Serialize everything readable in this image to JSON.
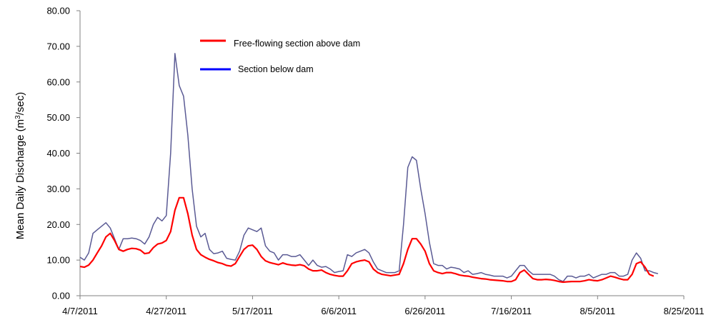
{
  "chart_data": {
    "type": "line",
    "title": "",
    "xlabel": "",
    "ylabel": "Mean Daily Discharge (m³/sec)",
    "ylabel_parts": [
      "Mean Daily Discharge (m",
      "3",
      "/sec)"
    ],
    "x_start": "4/7/2011",
    "x_end": "8/25/2011",
    "ylim": [
      0,
      80
    ],
    "xticks": [
      "4/7/2011",
      "4/27/2011",
      "5/17/2011",
      "6/6/2011",
      "6/26/2011",
      "7/16/2011",
      "8/5/2011",
      "8/25/2011"
    ],
    "yticks": [
      "0.00",
      "10.00",
      "20.00",
      "30.00",
      "40.00",
      "50.00",
      "60.00",
      "70.00",
      "80.00"
    ],
    "grid": false,
    "legend_position": "top-left-inside",
    "series": [
      {
        "name": "Free-flowing section above dam",
        "color": "#ff0000",
        "points": [
          [
            "4/7/2011",
            8.2
          ],
          [
            "4/8/2011",
            8.0
          ],
          [
            "4/9/2011",
            8.6
          ],
          [
            "4/10/2011",
            10.0
          ],
          [
            "4/11/2011",
            12.0
          ],
          [
            "4/12/2011",
            14.0
          ],
          [
            "4/13/2011",
            16.5
          ],
          [
            "4/14/2011",
            17.5
          ],
          [
            "4/15/2011",
            15.5
          ],
          [
            "4/16/2011",
            13.0
          ],
          [
            "4/17/2011",
            12.5
          ],
          [
            "4/18/2011",
            13.0
          ],
          [
            "4/19/2011",
            13.3
          ],
          [
            "4/20/2011",
            13.2
          ],
          [
            "4/21/2011",
            12.8
          ],
          [
            "4/22/2011",
            11.8
          ],
          [
            "4/23/2011",
            12.0
          ],
          [
            "4/24/2011",
            13.5
          ],
          [
            "4/25/2011",
            14.5
          ],
          [
            "4/26/2011",
            14.8
          ],
          [
            "4/27/2011",
            15.5
          ],
          [
            "4/28/2011",
            18.0
          ],
          [
            "4/29/2011",
            24.0
          ],
          [
            "4/30/2011",
            27.5
          ],
          [
            "5/1/2011",
            27.5
          ],
          [
            "5/2/2011",
            23.0
          ],
          [
            "5/3/2011",
            17.0
          ],
          [
            "5/4/2011",
            13.0
          ],
          [
            "5/5/2011",
            11.5
          ],
          [
            "5/6/2011",
            10.8
          ],
          [
            "5/7/2011",
            10.2
          ],
          [
            "5/8/2011",
            9.8
          ],
          [
            "5/9/2011",
            9.3
          ],
          [
            "5/10/2011",
            9.0
          ],
          [
            "5/11/2011",
            8.5
          ],
          [
            "5/12/2011",
            8.3
          ],
          [
            "5/13/2011",
            9.0
          ],
          [
            "5/14/2011",
            11.0
          ],
          [
            "5/15/2011",
            13.0
          ],
          [
            "5/16/2011",
            14.0
          ],
          [
            "5/17/2011",
            14.2
          ],
          [
            "5/18/2011",
            13.0
          ],
          [
            "5/19/2011",
            11.0
          ],
          [
            "5/20/2011",
            9.8
          ],
          [
            "5/21/2011",
            9.3
          ],
          [
            "5/22/2011",
            9.0
          ],
          [
            "5/23/2011",
            8.7
          ],
          [
            "5/24/2011",
            9.2
          ],
          [
            "5/25/2011",
            8.8
          ],
          [
            "5/26/2011",
            8.6
          ],
          [
            "5/27/2011",
            8.5
          ],
          [
            "5/28/2011",
            8.7
          ],
          [
            "5/29/2011",
            8.4
          ],
          [
            "5/30/2011",
            7.5
          ],
          [
            "5/31/2011",
            7.0
          ],
          [
            "6/1/2011",
            7.0
          ],
          [
            "6/2/2011",
            7.2
          ],
          [
            "6/3/2011",
            6.5
          ],
          [
            "6/4/2011",
            6.0
          ],
          [
            "6/5/2011",
            5.7
          ],
          [
            "6/6/2011",
            5.5
          ],
          [
            "6/7/2011",
            5.5
          ],
          [
            "6/8/2011",
            7.0
          ],
          [
            "6/9/2011",
            9.0
          ],
          [
            "6/10/2011",
            9.5
          ],
          [
            "6/11/2011",
            9.8
          ],
          [
            "6/12/2011",
            10.0
          ],
          [
            "6/13/2011",
            9.5
          ],
          [
            "6/14/2011",
            7.5
          ],
          [
            "6/15/2011",
            6.5
          ],
          [
            "6/16/2011",
            6.0
          ],
          [
            "6/17/2011",
            5.8
          ],
          [
            "6/18/2011",
            5.6
          ],
          [
            "6/19/2011",
            5.8
          ],
          [
            "6/20/2011",
            6.0
          ],
          [
            "6/21/2011",
            9.0
          ],
          [
            "6/22/2011",
            13.0
          ],
          [
            "6/23/2011",
            16.0
          ],
          [
            "6/24/2011",
            16.0
          ],
          [
            "6/25/2011",
            14.5
          ],
          [
            "6/26/2011",
            12.5
          ],
          [
            "6/27/2011",
            9.0
          ],
          [
            "6/28/2011",
            7.0
          ],
          [
            "6/29/2011",
            6.5
          ],
          [
            "6/30/2011",
            6.2
          ],
          [
            "7/1/2011",
            6.5
          ],
          [
            "7/2/2011",
            6.5
          ],
          [
            "7/3/2011",
            6.2
          ],
          [
            "7/4/2011",
            5.8
          ],
          [
            "7/5/2011",
            5.6
          ],
          [
            "7/6/2011",
            5.5
          ],
          [
            "7/7/2011",
            5.2
          ],
          [
            "7/8/2011",
            5.0
          ],
          [
            "7/9/2011",
            4.8
          ],
          [
            "7/10/2011",
            4.7
          ],
          [
            "7/11/2011",
            4.5
          ],
          [
            "7/12/2011",
            4.4
          ],
          [
            "7/13/2011",
            4.3
          ],
          [
            "7/14/2011",
            4.2
          ],
          [
            "7/15/2011",
            4.0
          ],
          [
            "7/16/2011",
            4.0
          ],
          [
            "7/17/2011",
            4.5
          ],
          [
            "7/18/2011",
            6.5
          ],
          [
            "7/19/2011",
            7.2
          ],
          [
            "7/20/2011",
            6.0
          ],
          [
            "7/21/2011",
            4.8
          ],
          [
            "7/22/2011",
            4.5
          ],
          [
            "7/23/2011",
            4.5
          ],
          [
            "7/24/2011",
            4.6
          ],
          [
            "7/25/2011",
            4.5
          ],
          [
            "7/26/2011",
            4.3
          ],
          [
            "7/27/2011",
            4.0
          ],
          [
            "7/28/2011",
            3.8
          ],
          [
            "7/29/2011",
            3.9
          ],
          [
            "7/30/2011",
            4.0
          ],
          [
            "7/31/2011",
            4.0
          ],
          [
            "8/1/2011",
            4.0
          ],
          [
            "8/2/2011",
            4.2
          ],
          [
            "8/3/2011",
            4.5
          ],
          [
            "8/4/2011",
            4.3
          ],
          [
            "8/5/2011",
            4.2
          ],
          [
            "8/6/2011",
            4.5
          ],
          [
            "8/7/2011",
            5.0
          ],
          [
            "8/8/2011",
            5.5
          ],
          [
            "8/9/2011",
            5.2
          ],
          [
            "8/10/2011",
            4.8
          ],
          [
            "8/11/2011",
            4.5
          ],
          [
            "8/12/2011",
            4.5
          ],
          [
            "8/13/2011",
            6.0
          ],
          [
            "8/14/2011",
            9.0
          ],
          [
            "8/15/2011",
            9.5
          ],
          [
            "8/16/2011",
            8.0
          ],
          [
            "8/17/2011",
            6.0
          ],
          [
            "8/18/2011",
            5.5
          ]
        ]
      },
      {
        "name": "Section below dam",
        "color": "#5a5a94",
        "legend_color": "#0000ff",
        "points": [
          [
            "4/7/2011",
            10.8
          ],
          [
            "4/8/2011",
            10.0
          ],
          [
            "4/9/2011",
            12.0
          ],
          [
            "4/10/2011",
            17.5
          ],
          [
            "4/11/2011",
            18.5
          ],
          [
            "4/12/2011",
            19.5
          ],
          [
            "4/13/2011",
            20.5
          ],
          [
            "4/14/2011",
            19.0
          ],
          [
            "4/15/2011",
            16.0
          ],
          [
            "4/16/2011",
            13.0
          ],
          [
            "4/17/2011",
            16.0
          ],
          [
            "4/18/2011",
            16.0
          ],
          [
            "4/19/2011",
            16.2
          ],
          [
            "4/20/2011",
            16.0
          ],
          [
            "4/21/2011",
            15.5
          ],
          [
            "4/22/2011",
            14.5
          ],
          [
            "4/23/2011",
            16.5
          ],
          [
            "4/24/2011",
            20.0
          ],
          [
            "4/25/2011",
            22.0
          ],
          [
            "4/26/2011",
            21.0
          ],
          [
            "4/27/2011",
            22.5
          ],
          [
            "4/28/2011",
            40.0
          ],
          [
            "4/29/2011",
            68.0
          ],
          [
            "4/30/2011",
            59.0
          ],
          [
            "5/1/2011",
            56.0
          ],
          [
            "5/2/2011",
            45.0
          ],
          [
            "5/3/2011",
            30.0
          ],
          [
            "5/4/2011",
            19.5
          ],
          [
            "5/5/2011",
            16.5
          ],
          [
            "5/6/2011",
            17.5
          ],
          [
            "5/7/2011",
            13.0
          ],
          [
            "5/8/2011",
            11.8
          ],
          [
            "5/9/2011",
            12.0
          ],
          [
            "5/10/2011",
            12.5
          ],
          [
            "5/11/2011",
            10.5
          ],
          [
            "5/12/2011",
            10.2
          ],
          [
            "5/13/2011",
            10.0
          ],
          [
            "5/14/2011",
            12.5
          ],
          [
            "5/15/2011",
            17.0
          ],
          [
            "5/16/2011",
            19.0
          ],
          [
            "5/17/2011",
            18.5
          ],
          [
            "5/18/2011",
            18.0
          ],
          [
            "5/19/2011",
            19.0
          ],
          [
            "5/20/2011",
            14.0
          ],
          [
            "5/21/2011",
            12.5
          ],
          [
            "5/22/2011",
            12.0
          ],
          [
            "5/23/2011",
            10.0
          ],
          [
            "5/24/2011",
            11.5
          ],
          [
            "5/25/2011",
            11.5
          ],
          [
            "5/26/2011",
            11.0
          ],
          [
            "5/27/2011",
            11.0
          ],
          [
            "5/28/2011",
            11.5
          ],
          [
            "5/29/2011",
            10.0
          ],
          [
            "5/30/2011",
            8.5
          ],
          [
            "5/31/2011",
            10.0
          ],
          [
            "6/1/2011",
            8.5
          ],
          [
            "6/2/2011",
            8.0
          ],
          [
            "6/3/2011",
            8.2
          ],
          [
            "6/4/2011",
            7.5
          ],
          [
            "6/5/2011",
            6.5
          ],
          [
            "6/6/2011",
            6.8
          ],
          [
            "6/7/2011",
            7.0
          ],
          [
            "6/8/2011",
            11.5
          ],
          [
            "6/9/2011",
            11.0
          ],
          [
            "6/10/2011",
            12.0
          ],
          [
            "6/11/2011",
            12.5
          ],
          [
            "6/12/2011",
            13.0
          ],
          [
            "6/13/2011",
            12.0
          ],
          [
            "6/14/2011",
            9.5
          ],
          [
            "6/15/2011",
            7.5
          ],
          [
            "6/16/2011",
            7.0
          ],
          [
            "6/17/2011",
            6.5
          ],
          [
            "6/18/2011",
            6.5
          ],
          [
            "6/19/2011",
            6.5
          ],
          [
            "6/20/2011",
            7.0
          ],
          [
            "6/21/2011",
            20.0
          ],
          [
            "6/22/2011",
            36.0
          ],
          [
            "6/23/2011",
            39.0
          ],
          [
            "6/24/2011",
            38.0
          ],
          [
            "6/25/2011",
            30.0
          ],
          [
            "6/26/2011",
            23.0
          ],
          [
            "6/27/2011",
            15.0
          ],
          [
            "6/28/2011",
            9.0
          ],
          [
            "6/29/2011",
            8.5
          ],
          [
            "6/30/2011",
            8.5
          ],
          [
            "7/1/2011",
            7.5
          ],
          [
            "7/2/2011",
            8.0
          ],
          [
            "7/3/2011",
            7.8
          ],
          [
            "7/4/2011",
            7.5
          ],
          [
            "7/5/2011",
            6.5
          ],
          [
            "7/6/2011",
            7.0
          ],
          [
            "7/7/2011",
            6.0
          ],
          [
            "7/8/2011",
            6.2
          ],
          [
            "7/9/2011",
            6.5
          ],
          [
            "7/10/2011",
            6.0
          ],
          [
            "7/11/2011",
            5.8
          ],
          [
            "7/12/2011",
            5.5
          ],
          [
            "7/13/2011",
            5.5
          ],
          [
            "7/14/2011",
            5.5
          ],
          [
            "7/15/2011",
            5.0
          ],
          [
            "7/16/2011",
            5.5
          ],
          [
            "7/17/2011",
            7.0
          ],
          [
            "7/18/2011",
            8.5
          ],
          [
            "7/19/2011",
            8.5
          ],
          [
            "7/20/2011",
            7.0
          ],
          [
            "7/21/2011",
            6.0
          ],
          [
            "7/22/2011",
            6.0
          ],
          [
            "7/23/2011",
            6.0
          ],
          [
            "7/24/2011",
            6.0
          ],
          [
            "7/25/2011",
            6.0
          ],
          [
            "7/26/2011",
            5.5
          ],
          [
            "7/27/2011",
            4.5
          ],
          [
            "7/28/2011",
            4.0
          ],
          [
            "7/29/2011",
            5.5
          ],
          [
            "7/30/2011",
            5.5
          ],
          [
            "7/31/2011",
            5.0
          ],
          [
            "8/1/2011",
            5.5
          ],
          [
            "8/2/2011",
            5.5
          ],
          [
            "8/3/2011",
            6.0
          ],
          [
            "8/4/2011",
            5.0
          ],
          [
            "8/5/2011",
            5.5
          ],
          [
            "8/6/2011",
            6.0
          ],
          [
            "8/7/2011",
            6.0
          ],
          [
            "8/8/2011",
            6.5
          ],
          [
            "8/9/2011",
            6.5
          ],
          [
            "8/10/2011",
            5.5
          ],
          [
            "8/11/2011",
            5.5
          ],
          [
            "8/12/2011",
            6.0
          ],
          [
            "8/13/2011",
            10.0
          ],
          [
            "8/14/2011",
            12.0
          ],
          [
            "8/15/2011",
            10.5
          ],
          [
            "8/16/2011",
            7.0
          ],
          [
            "8/17/2011",
            7.0
          ],
          [
            "8/18/2011",
            6.5
          ],
          [
            "8/19/2011",
            6.2
          ]
        ]
      }
    ]
  }
}
